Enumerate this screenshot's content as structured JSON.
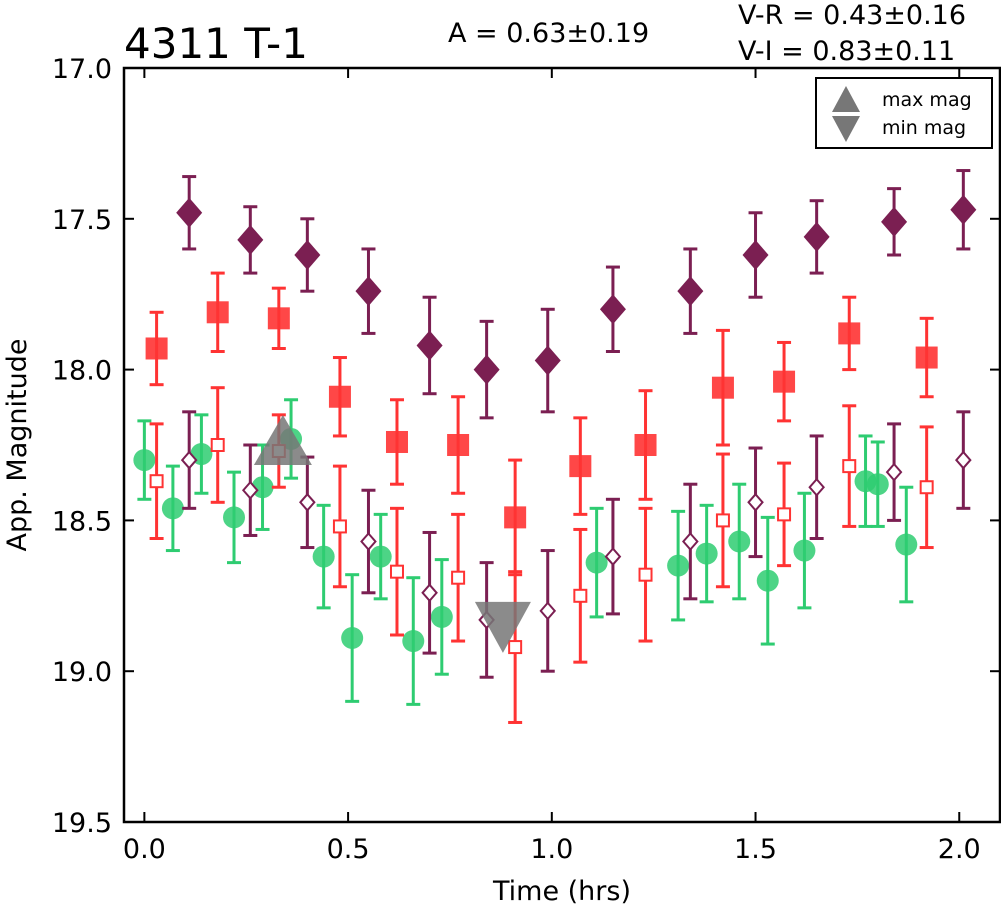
{
  "chart_data": {
    "type": "scatter",
    "title": "4311 T-1",
    "annotations": {
      "amplitude": "A  = 0.63±0.19",
      "v_r": "V-R = 0.43±0.16",
      "v_i": "V-I  = 0.83±0.11"
    },
    "xlabel": "Time (hrs)",
    "ylabel": "App. Magnitude",
    "xlim": [
      -0.05,
      2.1
    ],
    "ylim": [
      19.5,
      17.0
    ],
    "y_inverted": true,
    "xticks": [
      "0.0",
      "0.5",
      "1.0",
      "1.5",
      "2.0"
    ],
    "xtick_values": [
      0.0,
      0.5,
      1.0,
      1.5,
      2.0
    ],
    "yticks": [
      "17.0",
      "17.5",
      "18.0",
      "18.5",
      "19.0",
      "19.5"
    ],
    "ytick_values": [
      17.0,
      17.5,
      18.0,
      18.5,
      19.0,
      19.5
    ],
    "grid": false,
    "legend_position": "top-right",
    "legend": [
      {
        "label": "max mag",
        "marker": "triangle-up",
        "color": "#777777"
      },
      {
        "label": "min mag",
        "marker": "triangle-down",
        "color": "#777777"
      }
    ],
    "colors": {
      "green": "#2ecc71",
      "red": "#ff3333",
      "purple": "#7b1f52",
      "gray": "#777777"
    },
    "series": [
      {
        "marker": "diamond-filled",
        "color": "#7b1f52",
        "points": [
          [
            0.11,
            17.48,
            0.12
          ],
          [
            0.26,
            17.57,
            0.11
          ],
          [
            0.4,
            17.62,
            0.12
          ],
          [
            0.55,
            17.74,
            0.14
          ],
          [
            0.7,
            17.92,
            0.16
          ],
          [
            0.84,
            18.0,
            0.16
          ],
          [
            0.99,
            17.97,
            0.17
          ],
          [
            1.15,
            17.8,
            0.14
          ],
          [
            1.34,
            17.74,
            0.14
          ],
          [
            1.5,
            17.62,
            0.14
          ],
          [
            1.65,
            17.56,
            0.12
          ],
          [
            1.84,
            17.51,
            0.11
          ],
          [
            2.01,
            17.47,
            0.13
          ]
        ]
      },
      {
        "marker": "square-filled",
        "color": "#ff3333",
        "points": [
          [
            0.03,
            17.93,
            0.12
          ],
          [
            0.18,
            17.81,
            0.13
          ],
          [
            0.33,
            17.83,
            0.1
          ],
          [
            0.48,
            18.09,
            0.13
          ],
          [
            0.62,
            18.24,
            0.14
          ],
          [
            0.77,
            18.25,
            0.16
          ],
          [
            0.91,
            18.49,
            0.19
          ],
          [
            1.07,
            18.32,
            0.16
          ],
          [
            1.23,
            18.25,
            0.18
          ],
          [
            1.42,
            18.06,
            0.19
          ],
          [
            1.57,
            18.04,
            0.13
          ],
          [
            1.73,
            17.88,
            0.12
          ],
          [
            1.92,
            17.96,
            0.13
          ]
        ]
      },
      {
        "marker": "circle-filled",
        "color": "#2ecc71",
        "points": [
          [
            0.0,
            18.3,
            0.13
          ],
          [
            0.07,
            18.46,
            0.14
          ],
          [
            0.14,
            18.28,
            0.13
          ],
          [
            0.22,
            18.49,
            0.15
          ],
          [
            0.29,
            18.39,
            0.14
          ],
          [
            0.36,
            18.23,
            0.13
          ],
          [
            0.44,
            18.62,
            0.17
          ],
          [
            0.51,
            18.89,
            0.21
          ],
          [
            0.58,
            18.62,
            0.14
          ],
          [
            0.66,
            18.9,
            0.21
          ],
          [
            0.73,
            18.82,
            0.19
          ],
          [
            1.11,
            18.64,
            0.18
          ],
          [
            1.31,
            18.65,
            0.18
          ],
          [
            1.38,
            18.61,
            0.16
          ],
          [
            1.46,
            18.57,
            0.19
          ],
          [
            1.53,
            18.7,
            0.21
          ],
          [
            1.62,
            18.6,
            0.19
          ],
          [
            1.77,
            18.37,
            0.15
          ],
          [
            1.8,
            18.38,
            0.14
          ],
          [
            1.87,
            18.58,
            0.19
          ]
        ]
      },
      {
        "marker": "diamond-open",
        "color": "#7b1f52",
        "points": [
          [
            0.11,
            18.3,
            0.16
          ],
          [
            0.26,
            18.4,
            0.15
          ],
          [
            0.4,
            18.44,
            0.15
          ],
          [
            0.55,
            18.57,
            0.17
          ],
          [
            0.7,
            18.74,
            0.2
          ],
          [
            0.84,
            18.83,
            0.19
          ],
          [
            0.99,
            18.8,
            0.2
          ],
          [
            1.15,
            18.62,
            0.19
          ],
          [
            1.34,
            18.57,
            0.19
          ],
          [
            1.5,
            18.44,
            0.18
          ],
          [
            1.65,
            18.39,
            0.17
          ],
          [
            1.84,
            18.34,
            0.16
          ],
          [
            2.01,
            18.3,
            0.16
          ]
        ]
      },
      {
        "marker": "square-open",
        "color": "#ff3333",
        "points": [
          [
            0.03,
            18.37,
            0.19
          ],
          [
            0.18,
            18.25,
            0.19
          ],
          [
            0.33,
            18.27,
            0.12
          ],
          [
            0.48,
            18.52,
            0.2
          ],
          [
            0.62,
            18.67,
            0.21
          ],
          [
            0.77,
            18.69,
            0.21
          ],
          [
            0.91,
            18.92,
            0.25
          ],
          [
            1.07,
            18.75,
            0.22
          ],
          [
            1.23,
            18.68,
            0.22
          ],
          [
            1.42,
            18.5,
            0.22
          ],
          [
            1.57,
            18.48,
            0.17
          ],
          [
            1.73,
            18.32,
            0.2
          ],
          [
            1.92,
            18.39,
            0.2
          ]
        ]
      },
      {
        "marker": "triangle-up",
        "color": "#777777",
        "points": [
          [
            0.34,
            18.25,
            0
          ]
        ]
      },
      {
        "marker": "triangle-down",
        "color": "#777777",
        "points": [
          [
            0.88,
            18.83,
            0
          ]
        ]
      }
    ]
  }
}
